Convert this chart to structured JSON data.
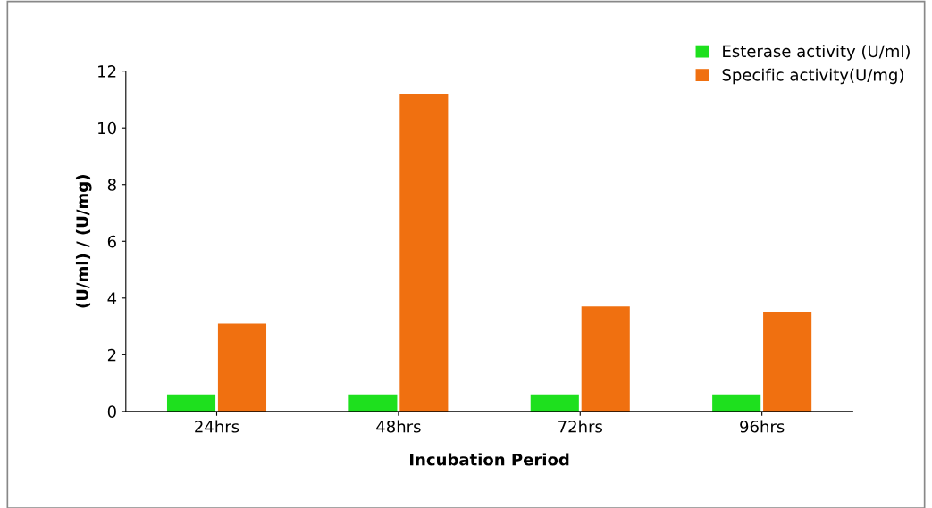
{
  "chart_data": {
    "type": "bar",
    "xlabel": "Incubation Period",
    "ylabel": "(U/ml) / (U/mg)",
    "categories": [
      "24hrs",
      "48hrs",
      "72hrs",
      "96hrs"
    ],
    "series": [
      {
        "name": "Esterase activity (U/ml)",
        "color": "#1ee01e",
        "values": [
          0.6,
          0.6,
          0.6,
          0.6
        ]
      },
      {
        "name": "Specific activity(U/mg)",
        "color": "#f07010",
        "values": [
          3.1,
          11.2,
          3.7,
          3.5
        ]
      }
    ],
    "ylim": [
      0,
      12
    ],
    "yticks": [
      0,
      2,
      4,
      6,
      8,
      10,
      12
    ],
    "grid": false,
    "legend": "top right"
  }
}
